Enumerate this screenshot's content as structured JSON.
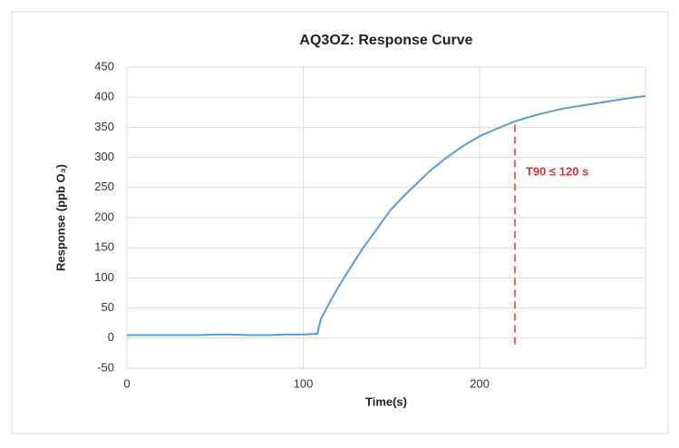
{
  "chart_data": {
    "type": "line",
    "title": "AQ3OZ: Response Curve",
    "x_label": "Time(s)",
    "y_label": "Response  (ppb O₃)",
    "x": [
      0,
      10,
      20,
      30,
      40,
      50,
      60,
      70,
      80,
      90,
      100,
      107,
      108,
      109,
      110,
      116,
      122,
      128.5,
      134,
      139,
      149,
      157,
      164.5,
      172,
      180,
      190,
      200.5,
      210,
      221,
      234,
      247,
      260,
      272.5,
      284,
      294
    ],
    "series": [
      {
        "name": "Response",
        "color": "#5b9bd5",
        "values": [
          5,
          5,
          5,
          5,
          5,
          6,
          6,
          5,
          5,
          6,
          6,
          7,
          7,
          20,
          32,
          65,
          95,
          125,
          150,
          170,
          211,
          236,
          257,
          278,
          297,
          318,
          336,
          348,
          361,
          372,
          381,
          387,
          393,
          398,
          402
        ]
      }
    ],
    "xlim": [
      0,
      294
    ],
    "xticks": [
      0,
      100,
      200
    ],
    "ylim": [
      -50,
      450
    ],
    "yticks": [
      -50,
      0,
      50,
      100,
      150,
      200,
      250,
      300,
      350,
      400,
      450
    ],
    "grid": true,
    "annotation": {
      "text": "T90 ≤ 120 s",
      "x": 220,
      "y_range": [
        -10,
        360
      ],
      "color": "#e0303a"
    }
  }
}
